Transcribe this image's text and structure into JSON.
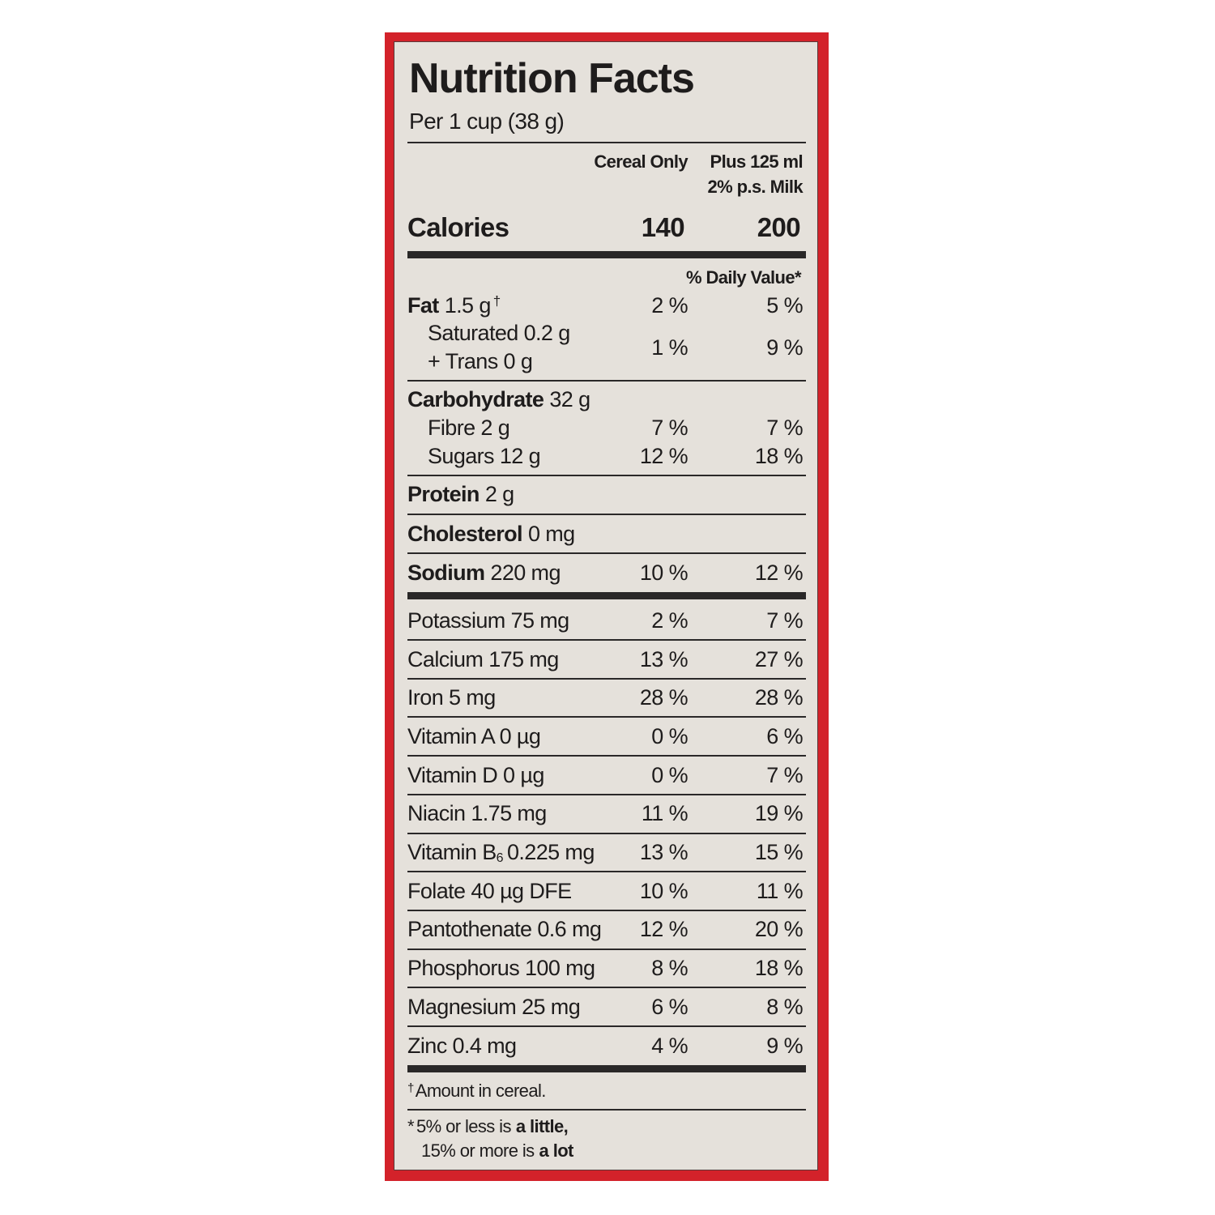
{
  "title": "Nutrition Facts",
  "serving": "Per 1 cup (38 g)",
  "columns": {
    "cereal": "Cereal Only",
    "milk": [
      "Plus 125 ml",
      "2% p.s. Milk"
    ]
  },
  "calories": {
    "label": "Calories",
    "cereal": "140",
    "milk": "200"
  },
  "daily_value_header": "% Daily Value*",
  "fat": {
    "name": "Fat",
    "amount": "1.5 g",
    "mark": "†",
    "cereal": "2 %",
    "milk": "5 %"
  },
  "saturated_trans": {
    "lines": [
      "Saturated 0.2 g",
      "+ Trans 0 g"
    ],
    "cereal": "1 %",
    "milk": "9 %"
  },
  "carbohydrate": {
    "name": "Carbohydrate",
    "amount": "32 g"
  },
  "fibre": {
    "label": "Fibre 2 g",
    "cereal": "7 %",
    "milk": "7 %"
  },
  "sugars": {
    "label": "Sugars 12 g",
    "cereal": "12 %",
    "milk": "18 %"
  },
  "protein": {
    "name": "Protein",
    "amount": "2 g"
  },
  "cholesterol": {
    "name": "Cholesterol",
    "amount": "0 mg"
  },
  "sodium": {
    "name": "Sodium",
    "amount": "220 mg",
    "cereal": "10 %",
    "milk": "12 %"
  },
  "vitamins_minerals": [
    {
      "label": "Potassium 75 mg",
      "cereal": "2 %",
      "milk": "7 %"
    },
    {
      "label": "Calcium 175 mg",
      "cereal": "13 %",
      "milk": "27 %"
    },
    {
      "label": "Iron 5 mg",
      "cereal": "28 %",
      "milk": "28 %"
    },
    {
      "label": "Vitamin A 0 µg",
      "cereal": "0 %",
      "milk": "6 %"
    },
    {
      "label": "Vitamin D 0 µg",
      "cereal": "0 %",
      "milk": "7 %"
    },
    {
      "label": "Niacin 1.75 mg",
      "cereal": "11 %",
      "milk": "19 %"
    },
    {
      "label": "Vitamin B",
      "subscript": "6",
      "amount": "0.225 mg",
      "cereal": "13 %",
      "milk": "15 %"
    },
    {
      "label": "Folate 40 µg DFE",
      "cereal": "10 %",
      "milk": "11 %"
    },
    {
      "label": "Pantothenate 0.6 mg",
      "cereal": "12 %",
      "milk": "20 %"
    },
    {
      "label": "Phosphorus 100 mg",
      "cereal": "8 %",
      "milk": "18 %"
    },
    {
      "label": "Magnesium 25 mg",
      "cereal": "6 %",
      "milk": "8 %"
    },
    {
      "label": "Zinc 0.4 mg",
      "cereal": "4 %",
      "milk": "9 %"
    }
  ],
  "footnotes": {
    "amount": {
      "mark": "†",
      "text": "Amount in cereal."
    },
    "daily_value": {
      "mark": "*",
      "line1": {
        "text": "5% or less is",
        "bold": "a little,"
      },
      "line2": {
        "text": "15% or more is",
        "bold": "a lot"
      }
    }
  }
}
